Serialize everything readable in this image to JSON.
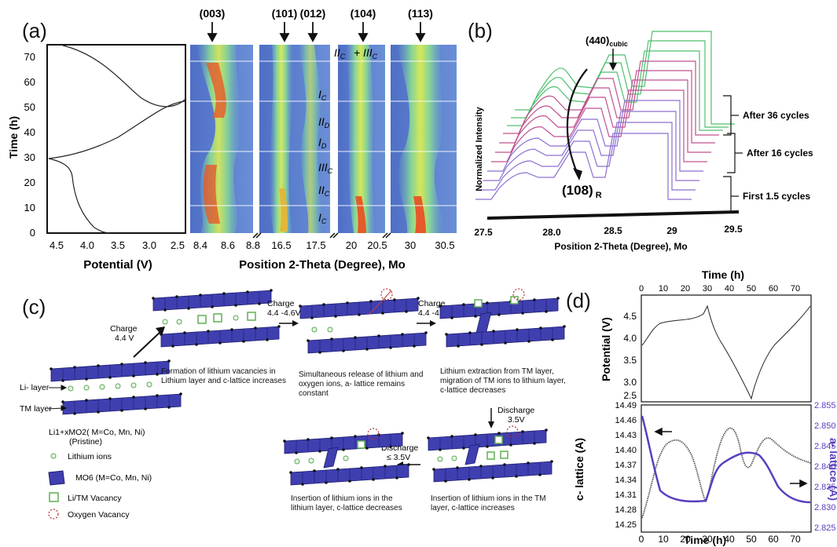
{
  "panel_labels": {
    "a": "(a)",
    "b": "(b)",
    "c": "(c)",
    "d": "(d)"
  },
  "panel_a": {
    "peaks": [
      "(003)",
      "(101)",
      "(012)",
      "(104)",
      "(113)"
    ],
    "time_axis_label": "Time (h)",
    "time_ticks": [
      "0",
      "10",
      "20",
      "30",
      "40",
      "50",
      "60",
      "70"
    ],
    "potential_axis_label": "Potential (V)",
    "potential_ticks": [
      "4.5",
      "4.0",
      "3.5",
      "3.0",
      "2.5"
    ],
    "two_theta_axis_label": "Position 2-Theta (Degree), Mo",
    "two_theta_ticks": [
      "8.4",
      "8.6",
      "8.8",
      "16.5",
      "17.5",
      "20",
      "20.5",
      "30",
      "30.5"
    ],
    "stage_labels": [
      "II",
      "III",
      "I",
      "II",
      "I",
      "III",
      "II",
      "I"
    ],
    "stage_subs": [
      "C",
      "C",
      "C",
      "D",
      "D",
      "C",
      "C",
      "C"
    ],
    "plus": "+"
  },
  "panel_b": {
    "y_label": "Normalized Intensity",
    "x_label": "Position 2-Theta (Degree), Mo",
    "x_ticks": [
      "27.5",
      "28.0",
      "28.5",
      "29",
      "29.5"
    ],
    "peak_440": "(440)",
    "peak_440_sub": "cubic",
    "peak_108": "(108)",
    "peak_108_sub": "R",
    "groups": [
      "After 36 cycles",
      "After 16 cycles",
      "First 1.5 cycles"
    ]
  },
  "panel_c": {
    "charge1": "Charge",
    "charge1_v": "4.4 V",
    "charge2": "Charge",
    "charge2_v": "4.4 -4.6V*",
    "charge3": "Charge",
    "charge3_v": "4.4 -4.8V",
    "discharge1": "Discharge",
    "discharge1_v": "3.5V",
    "discharge2": "Discharge",
    "discharge2_v": "≤ 3.5V",
    "li_layer": "Li- layer",
    "tm_layer": "TM layer",
    "pristine_formula": "Li1+xMO2( M=Co, Mn, Ni)",
    "pristine": "(Pristine)",
    "step1": "Formation of lithium vacancies in Lithium layer and c-lattice increases",
    "step2": "Simultaneous release of lithium and oxygen ions, a- lattice remains constant",
    "step3": "Lithium extraction from TM layer, migration of TM ions to lithium layer, c-lattice decreases",
    "step4": "Insertion of lithium ions in the TM layer, c-lattice increases",
    "step5": "Insertion of lithium ions in the lithium layer, c-lattice decreases",
    "legend": [
      "Lithium ions",
      "MO6  (M=Co, Mn, Ni)",
      "Li/TM Vacancy",
      "Oxygen Vacancy"
    ]
  },
  "panel_d": {
    "top_axis_label": "Time (h)",
    "bottom_axis_label": "Time (h)",
    "time_ticks": [
      "0",
      "10",
      "20",
      "30",
      "40",
      "50",
      "60",
      "70"
    ],
    "potential_label": "Potential (V)",
    "potential_ticks": [
      "4.5",
      "4.0",
      "3.5",
      "3.0",
      "2.5"
    ],
    "c_label": "c- lattice (A)",
    "c_ticks": [
      "14.49",
      "14.46",
      "14.43",
      "14.40",
      "14.37",
      "14.34",
      "14.31",
      "14.28",
      "14.25"
    ],
    "a_label": "a- lattice (A)",
    "a_ticks": [
      "2.855",
      "2.850",
      "2.845",
      "2.840",
      "2.835",
      "2.830",
      "2.825"
    ]
  }
}
